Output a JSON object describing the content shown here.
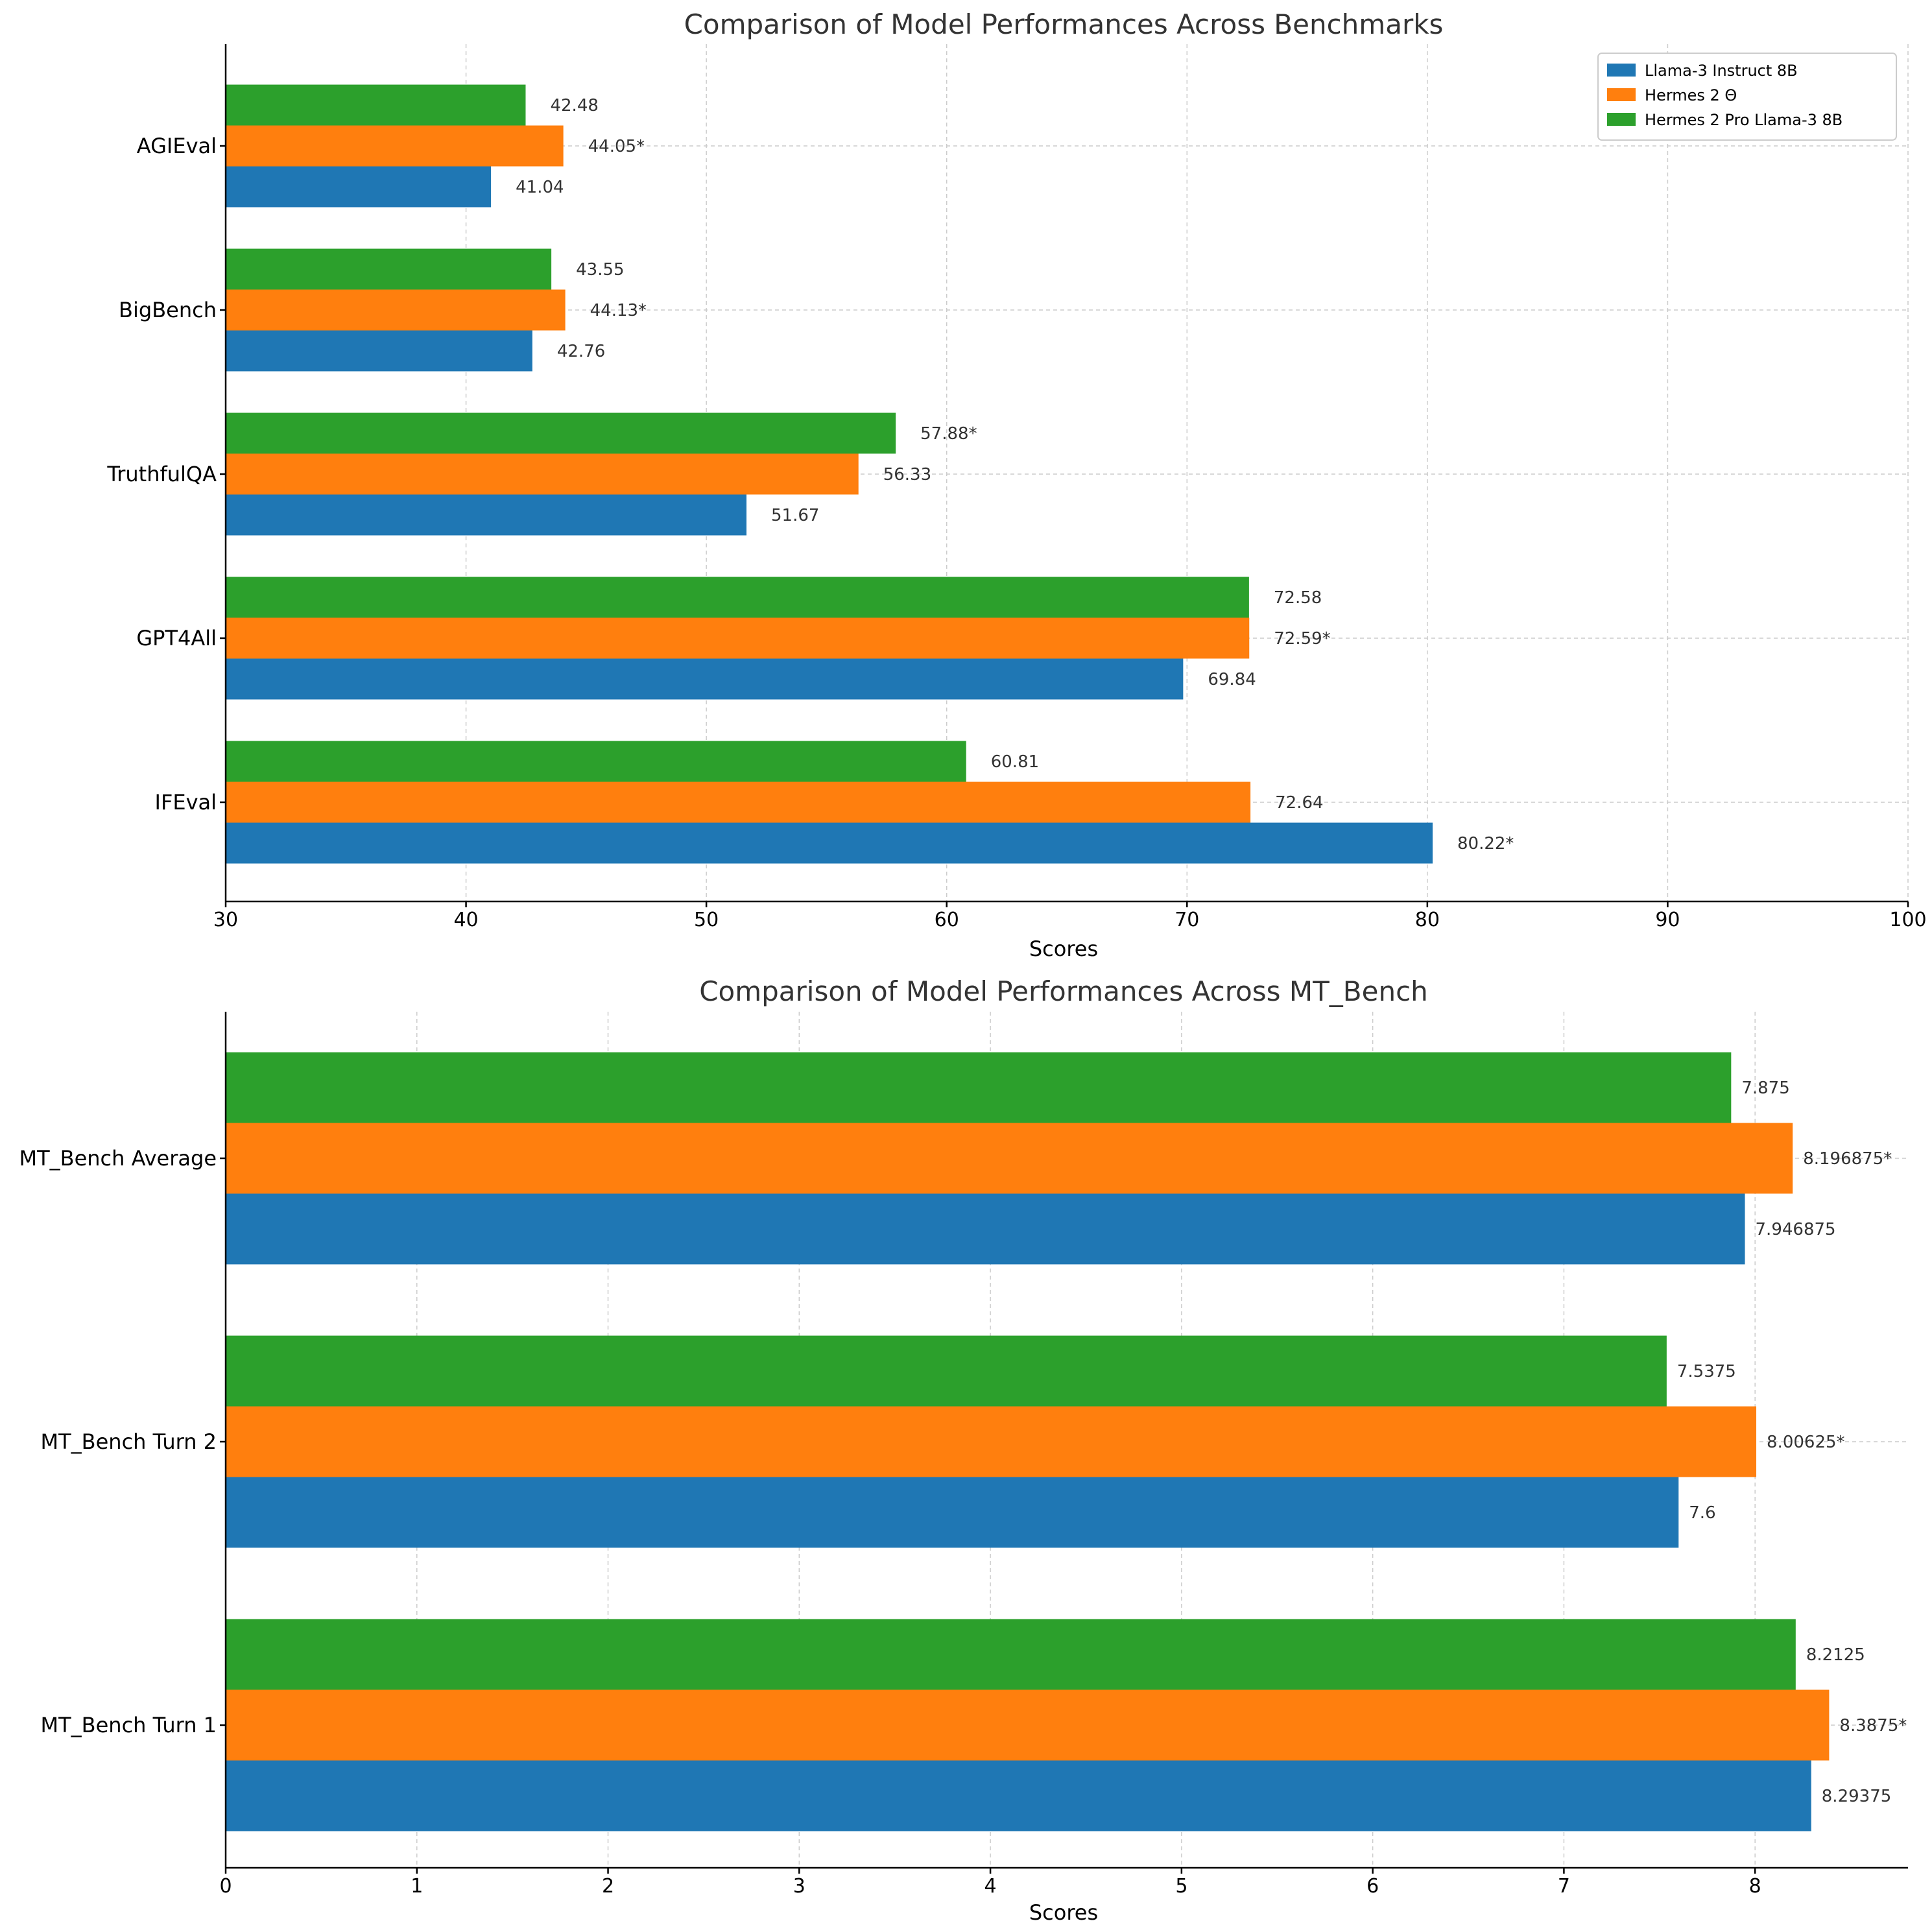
{
  "colors": {
    "llama": "#1f77b4",
    "hermes2": "#ff7f0e",
    "hermesPro": "#2ca02c"
  },
  "chart_data": [
    {
      "type": "bar",
      "orientation": "horizontal",
      "title": "Comparison of Model Performances Across Benchmarks",
      "xlabel": "Scores",
      "ylabel": "",
      "xlim": [
        30,
        100
      ],
      "xticks": [
        30,
        40,
        50,
        60,
        70,
        80,
        90,
        100
      ],
      "grid": true,
      "legend": {
        "position": "top-right",
        "entries": [
          "Llama-3 Instruct 8B",
          "Hermes 2 Θ",
          "Hermes 2 Pro Llama-3 8B"
        ]
      },
      "categories": [
        "AGIEval",
        "BigBench",
        "TruthfulQA",
        "GPT4All",
        "IFEval"
      ],
      "series": [
        {
          "name": "Llama-3 Instruct 8B",
          "color_key": "llama",
          "values": [
            41.04,
            42.76,
            51.67,
            69.84,
            80.22
          ],
          "labels": [
            "41.04",
            "42.76",
            "51.67",
            "69.84",
            "80.22*"
          ]
        },
        {
          "name": "Hermes 2 Θ",
          "color_key": "hermes2",
          "values": [
            44.05,
            44.13,
            56.33,
            72.59,
            72.64
          ],
          "labels": [
            "44.05*",
            "44.13*",
            "56.33",
            "72.59*",
            "72.64"
          ]
        },
        {
          "name": "Hermes 2 Pro Llama-3 8B",
          "color_key": "hermesPro",
          "values": [
            42.48,
            43.55,
            57.88,
            72.58,
            60.81
          ],
          "labels": [
            "42.48",
            "43.55",
            "57.88*",
            "72.58",
            "60.81"
          ]
        }
      ]
    },
    {
      "type": "bar",
      "orientation": "horizontal",
      "title": "Comparison of Model Performances Across MT_Bench",
      "xlabel": "Scores",
      "ylabel": "",
      "xlim": [
        0,
        8.8
      ],
      "xticks": [
        0,
        1,
        2,
        3,
        4,
        5,
        6,
        7,
        8
      ],
      "grid": true,
      "categories": [
        "MT_Bench Average",
        "MT_Bench Turn 2",
        "MT_Bench Turn 1"
      ],
      "series": [
        {
          "name": "Llama-3 Instruct 8B",
          "color_key": "llama",
          "values": [
            7.946875,
            7.6,
            8.29375
          ],
          "labels": [
            "7.946875",
            "7.6",
            "8.29375"
          ]
        },
        {
          "name": "Hermes 2 Θ",
          "color_key": "hermes2",
          "values": [
            8.196875,
            8.00625,
            8.3875
          ],
          "labels": [
            "8.196875*",
            "8.00625*",
            "8.3875*"
          ]
        },
        {
          "name": "Hermes 2 Pro Llama-3 8B",
          "color_key": "hermesPro",
          "values": [
            7.875,
            7.5375,
            8.2125
          ],
          "labels": [
            "7.875",
            "7.5375",
            "8.2125"
          ]
        }
      ]
    }
  ]
}
